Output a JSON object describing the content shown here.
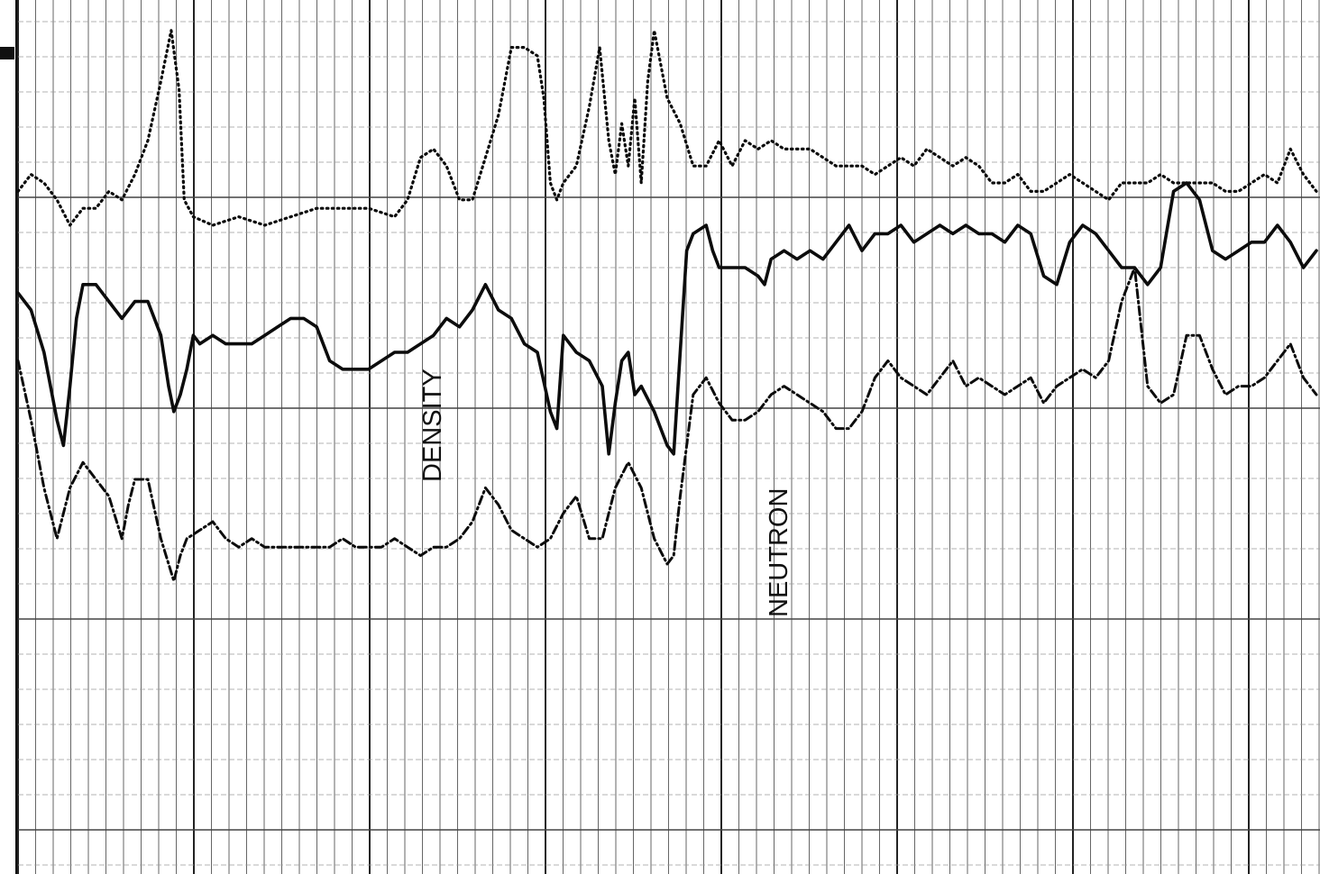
{
  "chart_data": {
    "type": "line",
    "xlabel": "",
    "ylabel": "",
    "xlim": [
      0,
      100
    ],
    "ylim": [
      0,
      100
    ],
    "grid": true,
    "annotations": [
      {
        "id": "density",
        "text": "DENSITY"
      },
      {
        "id": "neutron",
        "text": "NEUTRON"
      }
    ],
    "series": [
      {
        "style": "dotted",
        "points": [
          [
            0,
            79
          ],
          [
            1,
            81
          ],
          [
            2,
            80
          ],
          [
            3,
            78
          ],
          [
            4,
            75
          ],
          [
            5,
            77
          ],
          [
            6,
            77
          ],
          [
            7,
            79
          ],
          [
            8,
            78
          ],
          [
            9,
            81
          ],
          [
            10,
            85
          ],
          [
            11,
            92
          ],
          [
            11.8,
            98
          ],
          [
            12.4,
            91
          ],
          [
            12.8,
            78
          ],
          [
            13.5,
            76
          ],
          [
            15,
            75
          ],
          [
            17,
            76
          ],
          [
            19,
            75
          ],
          [
            21,
            76
          ],
          [
            23,
            77
          ],
          [
            25,
            77
          ],
          [
            27,
            77
          ],
          [
            29,
            76
          ],
          [
            30,
            78
          ],
          [
            31,
            83
          ],
          [
            32,
            84
          ],
          [
            33,
            82
          ],
          [
            34,
            78
          ],
          [
            35,
            78
          ],
          [
            36,
            83
          ],
          [
            37,
            88
          ],
          [
            38,
            96
          ],
          [
            39,
            96
          ],
          [
            40,
            95
          ],
          [
            40.5,
            90
          ],
          [
            41,
            80
          ],
          [
            41.5,
            78
          ],
          [
            42,
            80
          ],
          [
            43,
            82
          ],
          [
            44,
            89
          ],
          [
            44.8,
            96
          ],
          [
            45.5,
            85
          ],
          [
            46,
            81
          ],
          [
            46.5,
            87
          ],
          [
            47,
            82
          ],
          [
            47.5,
            90
          ],
          [
            48,
            80
          ],
          [
            48.5,
            92
          ],
          [
            49,
            98
          ],
          [
            50,
            90
          ],
          [
            51,
            87
          ],
          [
            52,
            82
          ],
          [
            53,
            82
          ],
          [
            54,
            85
          ],
          [
            55,
            82
          ],
          [
            56,
            85
          ],
          [
            57,
            84
          ],
          [
            58,
            85
          ],
          [
            59,
            84
          ],
          [
            60,
            84
          ],
          [
            61,
            84
          ],
          [
            62,
            83
          ],
          [
            63,
            82
          ],
          [
            64,
            82
          ],
          [
            65,
            82
          ],
          [
            66,
            81
          ],
          [
            67,
            82
          ],
          [
            68,
            83
          ],
          [
            69,
            82
          ],
          [
            70,
            84
          ],
          [
            71,
            83
          ],
          [
            72,
            82
          ],
          [
            73,
            83
          ],
          [
            74,
            82
          ],
          [
            75,
            80
          ],
          [
            76,
            80
          ],
          [
            77,
            81
          ],
          [
            78,
            79
          ],
          [
            79,
            79
          ],
          [
            80,
            80
          ],
          [
            81,
            81
          ],
          [
            82,
            80
          ],
          [
            83,
            79
          ],
          [
            84,
            78
          ],
          [
            85,
            80
          ],
          [
            86,
            80
          ],
          [
            87,
            80
          ],
          [
            88,
            81
          ],
          [
            89,
            80
          ],
          [
            90,
            80
          ],
          [
            91,
            80
          ],
          [
            92,
            80
          ],
          [
            93,
            79
          ],
          [
            94,
            79
          ],
          [
            95,
            80
          ],
          [
            96,
            81
          ],
          [
            97,
            80
          ],
          [
            98,
            84
          ],
          [
            99,
            81
          ],
          [
            100,
            79
          ]
        ]
      },
      {
        "style": "solid",
        "points": [
          [
            0,
            67
          ],
          [
            1,
            65
          ],
          [
            2,
            60
          ],
          [
            3,
            52
          ],
          [
            3.5,
            49
          ],
          [
            4,
            56
          ],
          [
            4.5,
            64
          ],
          [
            5,
            68
          ],
          [
            6,
            68
          ],
          [
            7,
            66
          ],
          [
            8,
            64
          ],
          [
            9,
            66
          ],
          [
            10,
            66
          ],
          [
            11,
            62
          ],
          [
            11.6,
            56
          ],
          [
            12,
            53
          ],
          [
            12.5,
            55
          ],
          [
            13,
            58
          ],
          [
            13.5,
            62
          ],
          [
            14,
            61
          ],
          [
            15,
            62
          ],
          [
            16,
            61
          ],
          [
            17,
            61
          ],
          [
            18,
            61
          ],
          [
            19,
            62
          ],
          [
            20,
            63
          ],
          [
            21,
            64
          ],
          [
            22,
            64
          ],
          [
            23,
            63
          ],
          [
            24,
            59
          ],
          [
            25,
            58
          ],
          [
            26,
            58
          ],
          [
            27,
            58
          ],
          [
            28,
            59
          ],
          [
            29,
            60
          ],
          [
            30,
            60
          ],
          [
            31,
            61
          ],
          [
            32,
            62
          ],
          [
            33,
            64
          ],
          [
            34,
            63
          ],
          [
            35,
            65
          ],
          [
            36,
            68
          ],
          [
            37,
            65
          ],
          [
            38,
            64
          ],
          [
            39,
            61
          ],
          [
            40,
            60
          ],
          [
            41,
            53
          ],
          [
            41.5,
            51
          ],
          [
            42,
            62
          ],
          [
            43,
            60
          ],
          [
            44,
            59
          ],
          [
            45,
            56
          ],
          [
            45.5,
            48
          ],
          [
            46,
            54
          ],
          [
            46.5,
            59
          ],
          [
            47,
            60
          ],
          [
            47.5,
            55
          ],
          [
            48,
            56
          ],
          [
            49,
            53
          ],
          [
            50,
            49
          ],
          [
            50.5,
            48
          ],
          [
            51,
            60
          ],
          [
            51.5,
            72
          ],
          [
            52,
            74
          ],
          [
            53,
            75
          ],
          [
            53.5,
            72
          ],
          [
            54,
            70
          ],
          [
            55,
            70
          ],
          [
            56,
            70
          ],
          [
            57,
            69
          ],
          [
            57.5,
            68
          ],
          [
            58,
            71
          ],
          [
            59,
            72
          ],
          [
            60,
            71
          ],
          [
            61,
            72
          ],
          [
            62,
            71
          ],
          [
            63,
            73
          ],
          [
            64,
            75
          ],
          [
            65,
            72
          ],
          [
            66,
            74
          ],
          [
            67,
            74
          ],
          [
            68,
            75
          ],
          [
            69,
            73
          ],
          [
            70,
            74
          ],
          [
            71,
            75
          ],
          [
            72,
            74
          ],
          [
            73,
            75
          ],
          [
            74,
            74
          ],
          [
            75,
            74
          ],
          [
            76,
            73
          ],
          [
            77,
            75
          ],
          [
            78,
            74
          ],
          [
            79,
            69
          ],
          [
            80,
            68
          ],
          [
            81,
            73
          ],
          [
            82,
            75
          ],
          [
            83,
            74
          ],
          [
            84,
            72
          ],
          [
            85,
            70
          ],
          [
            86,
            70
          ],
          [
            87,
            68
          ],
          [
            88,
            70
          ],
          [
            89,
            79
          ],
          [
            90,
            80
          ],
          [
            91,
            78
          ],
          [
            92,
            72
          ],
          [
            93,
            71
          ],
          [
            94,
            72
          ],
          [
            95,
            73
          ],
          [
            96,
            73
          ],
          [
            97,
            75
          ],
          [
            98,
            73
          ],
          [
            99,
            70
          ],
          [
            100,
            72
          ]
        ]
      },
      {
        "style": "dashed",
        "points": [
          [
            0,
            59
          ],
          [
            1,
            52
          ],
          [
            2,
            44
          ],
          [
            3,
            38
          ],
          [
            3.5,
            41
          ],
          [
            4,
            44
          ],
          [
            5,
            47
          ],
          [
            6,
            45
          ],
          [
            7,
            43
          ],
          [
            8,
            38
          ],
          [
            8.5,
            42
          ],
          [
            9,
            45
          ],
          [
            10,
            45
          ],
          [
            11,
            38
          ],
          [
            12,
            33
          ],
          [
            12.5,
            36
          ],
          [
            13,
            38
          ],
          [
            14,
            39
          ],
          [
            15,
            40
          ],
          [
            16,
            38
          ],
          [
            17,
            37
          ],
          [
            18,
            38
          ],
          [
            19,
            37
          ],
          [
            20,
            37
          ],
          [
            21,
            37
          ],
          [
            22,
            37
          ],
          [
            23,
            37
          ],
          [
            24,
            37
          ],
          [
            25,
            38
          ],
          [
            26,
            37
          ],
          [
            27,
            37
          ],
          [
            28,
            37
          ],
          [
            29,
            38
          ],
          [
            30,
            37
          ],
          [
            31,
            36
          ],
          [
            32,
            37
          ],
          [
            33,
            37
          ],
          [
            34,
            38
          ],
          [
            35,
            40
          ],
          [
            36,
            44
          ],
          [
            37,
            42
          ],
          [
            38,
            39
          ],
          [
            39,
            38
          ],
          [
            40,
            37
          ],
          [
            41,
            38
          ],
          [
            42,
            41
          ],
          [
            43,
            43
          ],
          [
            44,
            38
          ],
          [
            45,
            38
          ],
          [
            46,
            44
          ],
          [
            47,
            47
          ],
          [
            48,
            44
          ],
          [
            49,
            38
          ],
          [
            50,
            35
          ],
          [
            50.5,
            36
          ],
          [
            51,
            43
          ],
          [
            52,
            55
          ],
          [
            53,
            57
          ],
          [
            54,
            54
          ],
          [
            55,
            52
          ],
          [
            56,
            52
          ],
          [
            57,
            53
          ],
          [
            58,
            55
          ],
          [
            59,
            56
          ],
          [
            60,
            55
          ],
          [
            61,
            54
          ],
          [
            62,
            53
          ],
          [
            63,
            51
          ],
          [
            64,
            51
          ],
          [
            65,
            53
          ],
          [
            66,
            57
          ],
          [
            67,
            59
          ],
          [
            68,
            57
          ],
          [
            69,
            56
          ],
          [
            70,
            55
          ],
          [
            71,
            57
          ],
          [
            72,
            59
          ],
          [
            73,
            56
          ],
          [
            74,
            57
          ],
          [
            75,
            56
          ],
          [
            76,
            55
          ],
          [
            77,
            56
          ],
          [
            78,
            57
          ],
          [
            79,
            54
          ],
          [
            80,
            56
          ],
          [
            81,
            57
          ],
          [
            82,
            58
          ],
          [
            83,
            57
          ],
          [
            84,
            59
          ],
          [
            85,
            66
          ],
          [
            86,
            70
          ],
          [
            86.5,
            63
          ],
          [
            87,
            56
          ],
          [
            88,
            54
          ],
          [
            89,
            55
          ],
          [
            90,
            62
          ],
          [
            91,
            62
          ],
          [
            92,
            58
          ],
          [
            93,
            55
          ],
          [
            94,
            56
          ],
          [
            95,
            56
          ],
          [
            96,
            57
          ],
          [
            97,
            59
          ],
          [
            98,
            61
          ],
          [
            99,
            57
          ],
          [
            100,
            55
          ]
        ]
      }
    ]
  }
}
